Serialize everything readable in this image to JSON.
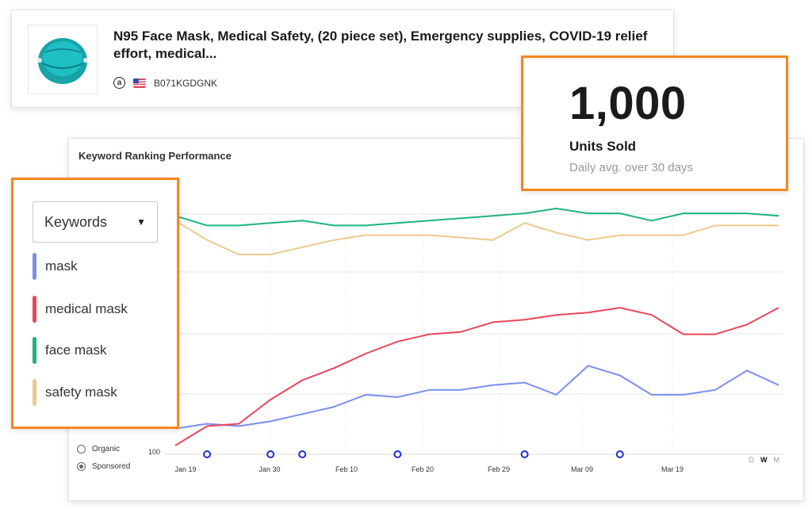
{
  "product": {
    "title": "N95 Face Mask, Medical Safety, (20 piece set), Emergency supplies, COVID-19 relief effort, medical...",
    "marketplace_icon": "amazon-icon",
    "country_icon": "us-flag-icon",
    "asin": "B071KGDGNK"
  },
  "units": {
    "value": "1,000",
    "label": "Units Sold",
    "sublabel": "Daily avg. over 30 days"
  },
  "legend": {
    "dropdown_label": "Keywords",
    "items": [
      {
        "label": "mask",
        "color": "#7a8ff0"
      },
      {
        "label": "medical mask",
        "color": "#e8475a"
      },
      {
        "label": "face mask",
        "color": "#1db57a"
      },
      {
        "label": "safety mask",
        "color": "#ecc98c"
      }
    ]
  },
  "ad_filter": {
    "options": [
      "Organic",
      "Sponsored"
    ],
    "selected": "Sponsored"
  },
  "range_toggle": {
    "options": [
      "D",
      "W",
      "M"
    ],
    "selected": "W"
  },
  "chart_data": {
    "type": "line",
    "title": "Keyword Ranking Performance",
    "x_labels": [
      "Jan 19",
      "Jan 30",
      "Feb 10",
      "Feb 20",
      "Feb 29",
      "Mar 09",
      "Mar 19"
    ],
    "y_tick_labels": [
      "100"
    ],
    "y_scale": "rank (lower is better, top of axis = rank 1)",
    "grid": true,
    "series": [
      {
        "name": "mask",
        "color": "#7a8ff0",
        "values": [
          92,
          90,
          91,
          89,
          86,
          83,
          78,
          79,
          76,
          76,
          74,
          73,
          78,
          66,
          70,
          78,
          78,
          76,
          68,
          74
        ]
      },
      {
        "name": "medical mask",
        "color": "#e8475a",
        "values": [
          99,
          91,
          90,
          80,
          72,
          67,
          61,
          56,
          53,
          52,
          48,
          47,
          45,
          44,
          42,
          45,
          53,
          53,
          49,
          42
        ]
      },
      {
        "name": "face mask",
        "color": "#1db57a",
        "values": [
          4,
          8,
          8,
          7,
          6,
          8,
          8,
          7,
          6,
          5,
          4,
          3,
          1,
          3,
          3,
          6,
          3,
          3,
          3,
          4
        ]
      },
      {
        "name": "safety mask",
        "color": "#ecc98c",
        "values": [
          6,
          14,
          20,
          20,
          17,
          14,
          12,
          12,
          12,
          13,
          14,
          7,
          11,
          14,
          12,
          12,
          12,
          8,
          8,
          8
        ]
      }
    ],
    "event_markers_x_index": [
      1,
      3,
      4,
      7,
      11,
      14
    ]
  }
}
